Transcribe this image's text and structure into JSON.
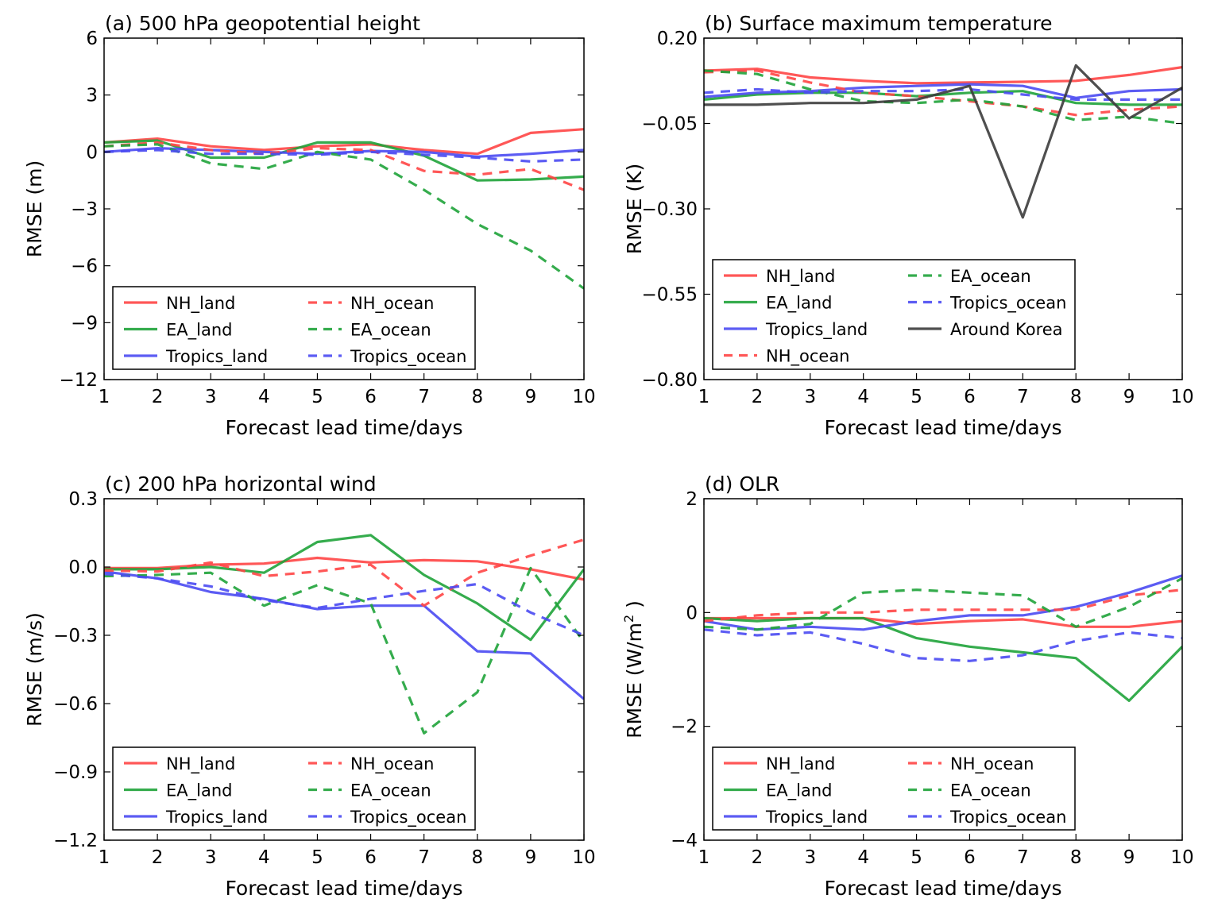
{
  "figure": {
    "series_styles": {
      "NH_land": {
        "color": "#ff4545",
        "dash": "solid"
      },
      "EA_land": {
        "color": "#1fa33a",
        "dash": "solid"
      },
      "Tropics_land": {
        "color": "#4a4af2",
        "dash": "solid"
      },
      "NH_ocean": {
        "color": "#ff4545",
        "dash": "dashed"
      },
      "EA_ocean": {
        "color": "#1fa33a",
        "dash": "dashed"
      },
      "Tropics_ocean": {
        "color": "#4a4af2",
        "dash": "dashed"
      },
      "Around Korea": {
        "color": "#3c3c3c",
        "dash": "solid"
      }
    }
  },
  "chart_data": [
    {
      "type": "line",
      "title": "(a) 500 hPa geopotential height",
      "xlabel": "Forecast lead time/days",
      "ylabel": "RMSE (m)",
      "x": [
        1,
        2,
        3,
        4,
        5,
        6,
        7,
        8,
        9,
        10
      ],
      "xticks": [
        "1",
        "2",
        "3",
        "4",
        "5",
        "6",
        "7",
        "8",
        "9",
        "10"
      ],
      "xlim": [
        1,
        10
      ],
      "ylim": [
        -12,
        6
      ],
      "yticks": [
        6,
        3,
        0,
        -3,
        -6,
        -9,
        -12
      ],
      "ytick_labels": [
        "6",
        "3",
        "0",
        "−3",
        "−6",
        "−9",
        "−12"
      ],
      "legend": {
        "location": "lower-left",
        "columns": 2,
        "entries": [
          "NH_land",
          "EA_land",
          "Tropics_land",
          "NH_ocean",
          "EA_ocean",
          "Tropics_ocean"
        ]
      },
      "series": [
        {
          "name": "NH_land",
          "values": [
            0.5,
            0.7,
            0.3,
            0.1,
            0.3,
            0.4,
            0.1,
            -0.1,
            1.0,
            1.2
          ]
        },
        {
          "name": "EA_land",
          "values": [
            0.5,
            0.6,
            -0.3,
            -0.3,
            0.5,
            0.5,
            -0.2,
            -1.5,
            -1.45,
            -1.3
          ]
        },
        {
          "name": "Tropics_land",
          "values": [
            0.0,
            0.2,
            0.1,
            0.0,
            -0.1,
            0.05,
            0.0,
            -0.25,
            -0.1,
            0.1
          ]
        },
        {
          "name": "NH_ocean",
          "values": [
            0.3,
            0.5,
            0.1,
            -0.1,
            0.2,
            0.1,
            -1.0,
            -1.2,
            -0.9,
            -2.0
          ]
        },
        {
          "name": "EA_ocean",
          "values": [
            0.3,
            0.4,
            -0.6,
            -0.9,
            0.0,
            -0.4,
            -2.0,
            -3.8,
            -5.2,
            -7.2
          ]
        },
        {
          "name": "Tropics_ocean",
          "values": [
            0.0,
            0.1,
            -0.1,
            -0.1,
            -0.15,
            0.0,
            -0.15,
            -0.3,
            -0.5,
            -0.4
          ]
        }
      ]
    },
    {
      "type": "line",
      "title": "(b) Surface maximum temperature",
      "xlabel": "Forecast lead time/days",
      "ylabel": "RMSE (K)",
      "x": [
        1,
        2,
        3,
        4,
        5,
        6,
        7,
        8,
        9,
        10
      ],
      "xticks": [
        "1",
        "2",
        "3",
        "4",
        "5",
        "6",
        "7",
        "8",
        "9",
        "10"
      ],
      "xlim": [
        1,
        10
      ],
      "ylim": [
        -0.8,
        0.2
      ],
      "yticks": [
        0.2,
        -0.05,
        -0.3,
        -0.55,
        -0.8
      ],
      "ytick_labels": [
        "0.20",
        "−0.05",
        "−0.30",
        "−0.55",
        "−0.80"
      ],
      "legend": {
        "location": "lower-left",
        "columns": 2,
        "entries": [
          "NH_land",
          "EA_land",
          "Tropics_land",
          "NH_ocean",
          "EA_ocean",
          "Tropics_ocean",
          "Around Korea"
        ]
      },
      "series": [
        {
          "name": "NH_land",
          "values": [
            0.105,
            0.11,
            0.085,
            0.075,
            0.068,
            0.07,
            0.072,
            0.075,
            0.092,
            0.115
          ]
        },
        {
          "name": "EA_land",
          "values": [
            0.02,
            0.035,
            0.04,
            0.04,
            0.03,
            0.04,
            0.045,
            0.01,
            0.005,
            0.005
          ]
        },
        {
          "name": "Tropics_land",
          "values": [
            0.028,
            0.04,
            0.045,
            0.055,
            0.06,
            0.065,
            0.06,
            0.025,
            0.045,
            0.05
          ]
        },
        {
          "name": "NH_ocean",
          "values": [
            0.1,
            0.105,
            0.07,
            0.04,
            0.03,
            0.015,
            0.0,
            -0.025,
            -0.01,
            -0.0
          ]
        },
        {
          "name": "EA_ocean",
          "values": [
            0.105,
            0.095,
            0.05,
            0.015,
            0.01,
            0.02,
            0.0,
            -0.04,
            -0.03,
            -0.05
          ]
        },
        {
          "name": "Tropics_ocean",
          "values": [
            0.04,
            0.05,
            0.04,
            0.045,
            0.045,
            0.05,
            0.035,
            0.02,
            0.02,
            0.02
          ]
        },
        {
          "name": "Around Korea",
          "values": [
            0.005,
            0.005,
            0.01,
            0.01,
            0.02,
            0.06,
            -0.325,
            0.12,
            -0.035,
            0.055
          ]
        }
      ]
    },
    {
      "type": "line",
      "title": "(c) 200 hPa horizontal wind",
      "xlabel": "Forecast lead time/days",
      "ylabel": "RMSE (m/s)",
      "x": [
        1,
        2,
        3,
        4,
        5,
        6,
        7,
        8,
        9,
        10
      ],
      "xticks": [
        "1",
        "2",
        "3",
        "4",
        "5",
        "6",
        "7",
        "8",
        "9",
        "10"
      ],
      "xlim": [
        1,
        10
      ],
      "ylim": [
        -1.2,
        0.3
      ],
      "yticks": [
        0.3,
        0.0,
        -0.3,
        -0.6,
        -0.9,
        -1.2
      ],
      "ytick_labels": [
        "0.3",
        "0.0",
        "−0.3",
        "−0.6",
        "−0.9",
        "−1.2"
      ],
      "legend": {
        "location": "lower-left",
        "columns": 2,
        "entries": [
          "NH_land",
          "EA_land",
          "Tropics_land",
          "NH_ocean",
          "EA_ocean",
          "Tropics_ocean"
        ]
      },
      "series": [
        {
          "name": "NH_land",
          "values": [
            -0.005,
            -0.005,
            0.01,
            0.015,
            0.04,
            0.02,
            0.03,
            0.025,
            -0.01,
            -0.055
          ]
        },
        {
          "name": "EA_land",
          "values": [
            -0.01,
            -0.01,
            0.0,
            -0.025,
            0.11,
            0.14,
            -0.035,
            -0.16,
            -0.32,
            -0.01
          ]
        },
        {
          "name": "Tropics_land",
          "values": [
            -0.02,
            -0.05,
            -0.11,
            -0.14,
            -0.185,
            -0.17,
            -0.17,
            -0.37,
            -0.38,
            -0.58
          ]
        },
        {
          "name": "NH_ocean",
          "values": [
            -0.015,
            -0.02,
            0.02,
            -0.04,
            -0.02,
            0.01,
            -0.17,
            -0.025,
            0.05,
            0.12
          ]
        },
        {
          "name": "EA_ocean",
          "values": [
            -0.04,
            -0.035,
            -0.025,
            -0.17,
            -0.08,
            -0.16,
            -0.73,
            -0.55,
            -0.005,
            -0.33
          ]
        },
        {
          "name": "Tropics_ocean",
          "values": [
            -0.03,
            -0.05,
            -0.085,
            -0.145,
            -0.18,
            -0.14,
            -0.105,
            -0.075,
            -0.2,
            -0.3
          ]
        }
      ]
    },
    {
      "type": "line",
      "title": "(d) OLR",
      "xlabel": "Forecast lead time/days",
      "ylabel": "RMSE (W/m",
      "ylabel_sup": "2",
      "ylabel_end": " )",
      "x": [
        1,
        2,
        3,
        4,
        5,
        6,
        7,
        8,
        9,
        10
      ],
      "xticks": [
        "1",
        "2",
        "3",
        "4",
        "5",
        "6",
        "7",
        "8",
        "9",
        "10"
      ],
      "xlim": [
        1,
        10
      ],
      "ylim": [
        -4,
        2
      ],
      "yticks": [
        2,
        0,
        -2,
        -4
      ],
      "ytick_labels": [
        "2",
        "0",
        "−2",
        "−4"
      ],
      "legend": {
        "location": "lower-left",
        "columns": 2,
        "entries": [
          "NH_land",
          "EA_land",
          "Tropics_land",
          "NH_ocean",
          "EA_ocean",
          "Tropics_ocean"
        ]
      },
      "series": [
        {
          "name": "NH_land",
          "values": [
            -0.1,
            -0.1,
            -0.1,
            -0.1,
            -0.2,
            -0.15,
            -0.12,
            -0.25,
            -0.25,
            -0.15
          ]
        },
        {
          "name": "EA_land",
          "values": [
            -0.1,
            -0.15,
            -0.1,
            -0.1,
            -0.45,
            -0.6,
            -0.7,
            -0.8,
            -1.55,
            -0.6
          ]
        },
        {
          "name": "Tropics_land",
          "values": [
            -0.15,
            -0.3,
            -0.25,
            -0.3,
            -0.15,
            -0.05,
            -0.05,
            0.1,
            0.35,
            0.65
          ]
        },
        {
          "name": "NH_ocean",
          "values": [
            -0.15,
            -0.05,
            0.0,
            0.0,
            0.05,
            0.05,
            0.05,
            0.05,
            0.3,
            0.4
          ]
        },
        {
          "name": "EA_ocean",
          "values": [
            -0.25,
            -0.3,
            -0.2,
            0.35,
            0.4,
            0.35,
            0.3,
            -0.25,
            0.1,
            0.6
          ]
        },
        {
          "name": "Tropics_ocean",
          "values": [
            -0.3,
            -0.4,
            -0.35,
            -0.55,
            -0.8,
            -0.85,
            -0.75,
            -0.5,
            -0.35,
            -0.45
          ]
        }
      ]
    }
  ]
}
